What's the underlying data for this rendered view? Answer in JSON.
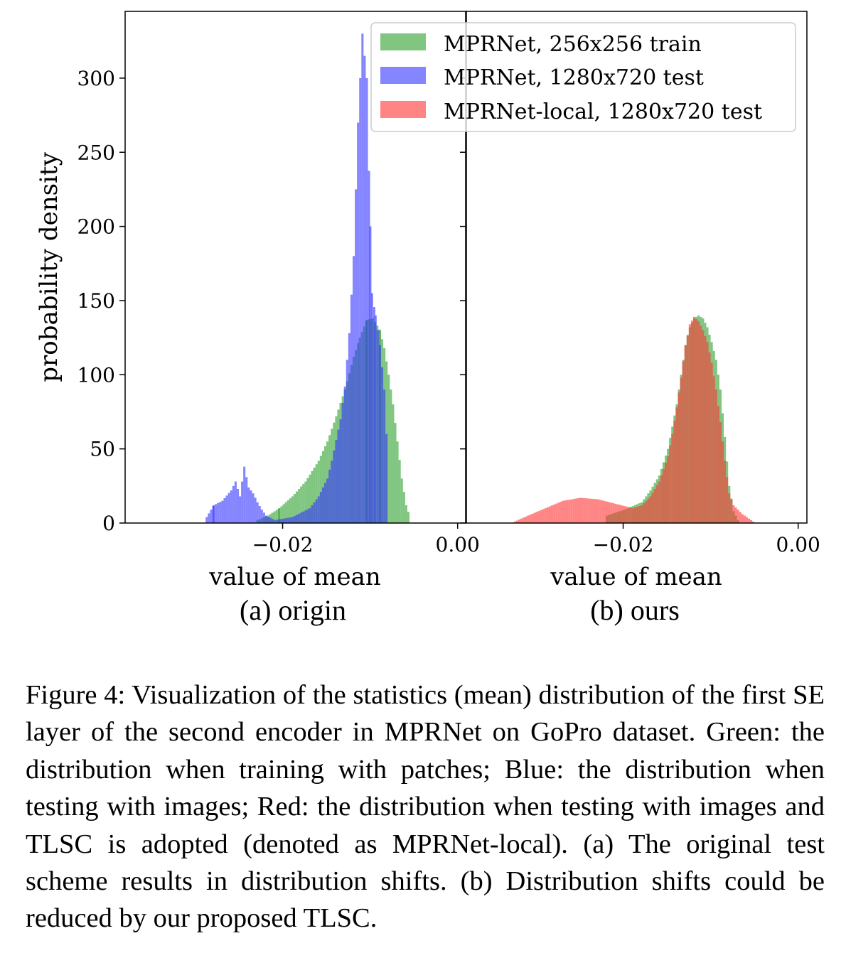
{
  "chart_data": [
    {
      "type": "histogram",
      "panel_label": "(a) origin",
      "xlabel": "value of mean",
      "ylabel": "probability density",
      "xlim": [
        -0.038,
        0.001
      ],
      "ylim": [
        0,
        345
      ],
      "xticks": [
        -0.02,
        0.0
      ],
      "xtick_labels": [
        "−0.02",
        "0.00"
      ],
      "yticks": [
        0,
        50,
        100,
        150,
        200,
        250,
        300
      ],
      "ytick_labels": [
        "0",
        "50",
        "100",
        "150",
        "200",
        "250",
        "300"
      ],
      "bin_width": 0.00025,
      "legend": {
        "position": "top-right",
        "entries": [
          "MPRNet, 256x256 train",
          "MPRNet, 1280x720 test",
          "MPRNet-local, 1280x720 test"
        ]
      },
      "series": [
        {
          "name": "MPRNet, 256x256 train",
          "color": "#2ca02c",
          "x": [
            -0.023,
            -0.0218,
            -0.0205,
            -0.019,
            -0.0175,
            -0.016,
            -0.015,
            -0.014,
            -0.013,
            -0.012,
            -0.0113,
            -0.0105,
            -0.0098,
            -0.009,
            -0.0085,
            -0.008,
            -0.0075,
            -0.007,
            -0.0065,
            -0.006,
            -0.0055
          ],
          "values": [
            2,
            5,
            10,
            18,
            28,
            42,
            55,
            72,
            90,
            112,
            125,
            137,
            138,
            130,
            118,
            100,
            80,
            55,
            30,
            12,
            3
          ]
        },
        {
          "name": "MPRNet, 1280x720 test",
          "color": "#3333ff",
          "x": [
            -0.0288,
            -0.028,
            -0.027,
            -0.026,
            -0.0255,
            -0.025,
            -0.0245,
            -0.024,
            -0.0235,
            -0.023,
            -0.0225,
            -0.022,
            -0.021,
            -0.019,
            -0.017,
            -0.016,
            -0.015,
            -0.0145,
            -0.014,
            -0.0135,
            -0.013,
            -0.0125,
            -0.012,
            -0.0115,
            -0.011,
            -0.0105,
            -0.0101,
            -0.0099,
            -0.0095,
            -0.009,
            -0.0085,
            -0.008
          ],
          "values": [
            4,
            12,
            15,
            22,
            28,
            18,
            38,
            24,
            20,
            14,
            9,
            5,
            2,
            4,
            10,
            18,
            30,
            42,
            56,
            70,
            92,
            128,
            180,
            270,
            330,
            300,
            200,
            155,
            140,
            120,
            90,
            30
          ]
        }
      ]
    },
    {
      "type": "histogram",
      "panel_label": "(b) ours",
      "xlabel": "value of mean",
      "ylabel": "",
      "xlim": [
        -0.038,
        0.001
      ],
      "ylim": [
        0,
        345
      ],
      "xticks": [
        -0.02,
        0.0
      ],
      "xtick_labels": [
        "−0.02",
        "0.00"
      ],
      "bin_width": 0.00025,
      "series": [
        {
          "name": "MPRNet, 256x256 train",
          "color": "#2ca02c",
          "x": [
            -0.022,
            -0.02,
            -0.018,
            -0.017,
            -0.016,
            -0.015,
            -0.0145,
            -0.014,
            -0.0135,
            -0.013,
            -0.0125,
            -0.012,
            -0.0115,
            -0.011,
            -0.0105,
            -0.01,
            -0.0095,
            -0.009,
            -0.0085,
            -0.008,
            -0.0075,
            -0.007,
            -0.0068
          ],
          "values": [
            5,
            9,
            14,
            22,
            32,
            50,
            65,
            80,
            100,
            120,
            132,
            138,
            140,
            138,
            132,
            122,
            110,
            90,
            58,
            25,
            8,
            2,
            0
          ]
        },
        {
          "name": "MPRNet-local, 1280x720 test",
          "color": "#ff3333",
          "x": [
            -0.0325,
            -0.031,
            -0.029,
            -0.027,
            -0.025,
            -0.023,
            -0.021,
            -0.019,
            -0.018,
            -0.017,
            -0.016,
            -0.015,
            -0.0145,
            -0.014,
            -0.0135,
            -0.013,
            -0.0125,
            -0.012,
            -0.0115,
            -0.011,
            -0.0105,
            -0.01,
            -0.0095,
            -0.009,
            -0.0085,
            -0.008,
            -0.0075,
            -0.007,
            -0.0065,
            -0.006,
            -0.0055,
            -0.005
          ],
          "values": [
            1,
            5,
            10,
            15,
            17,
            16,
            13,
            10,
            12,
            18,
            28,
            45,
            60,
            78,
            98,
            120,
            134,
            139,
            136,
            130,
            122,
            108,
            90,
            68,
            42,
            20,
            12,
            9,
            6,
            4,
            2,
            0
          ]
        }
      ]
    }
  ],
  "caption": "Figure 4: Visualization of the statistics (mean) distribution of the first SE layer of the second encoder in MPRNet on GoPro dataset. Green: the distribution when training with patches; Blue: the distribution when testing with images; Red: the distribution when testing with images and TLSC is adopted (denoted as MPRNet-local). (a) The original test scheme results in distribution shifts. (b) Distribution shifts could be reduced by our proposed TLSC."
}
